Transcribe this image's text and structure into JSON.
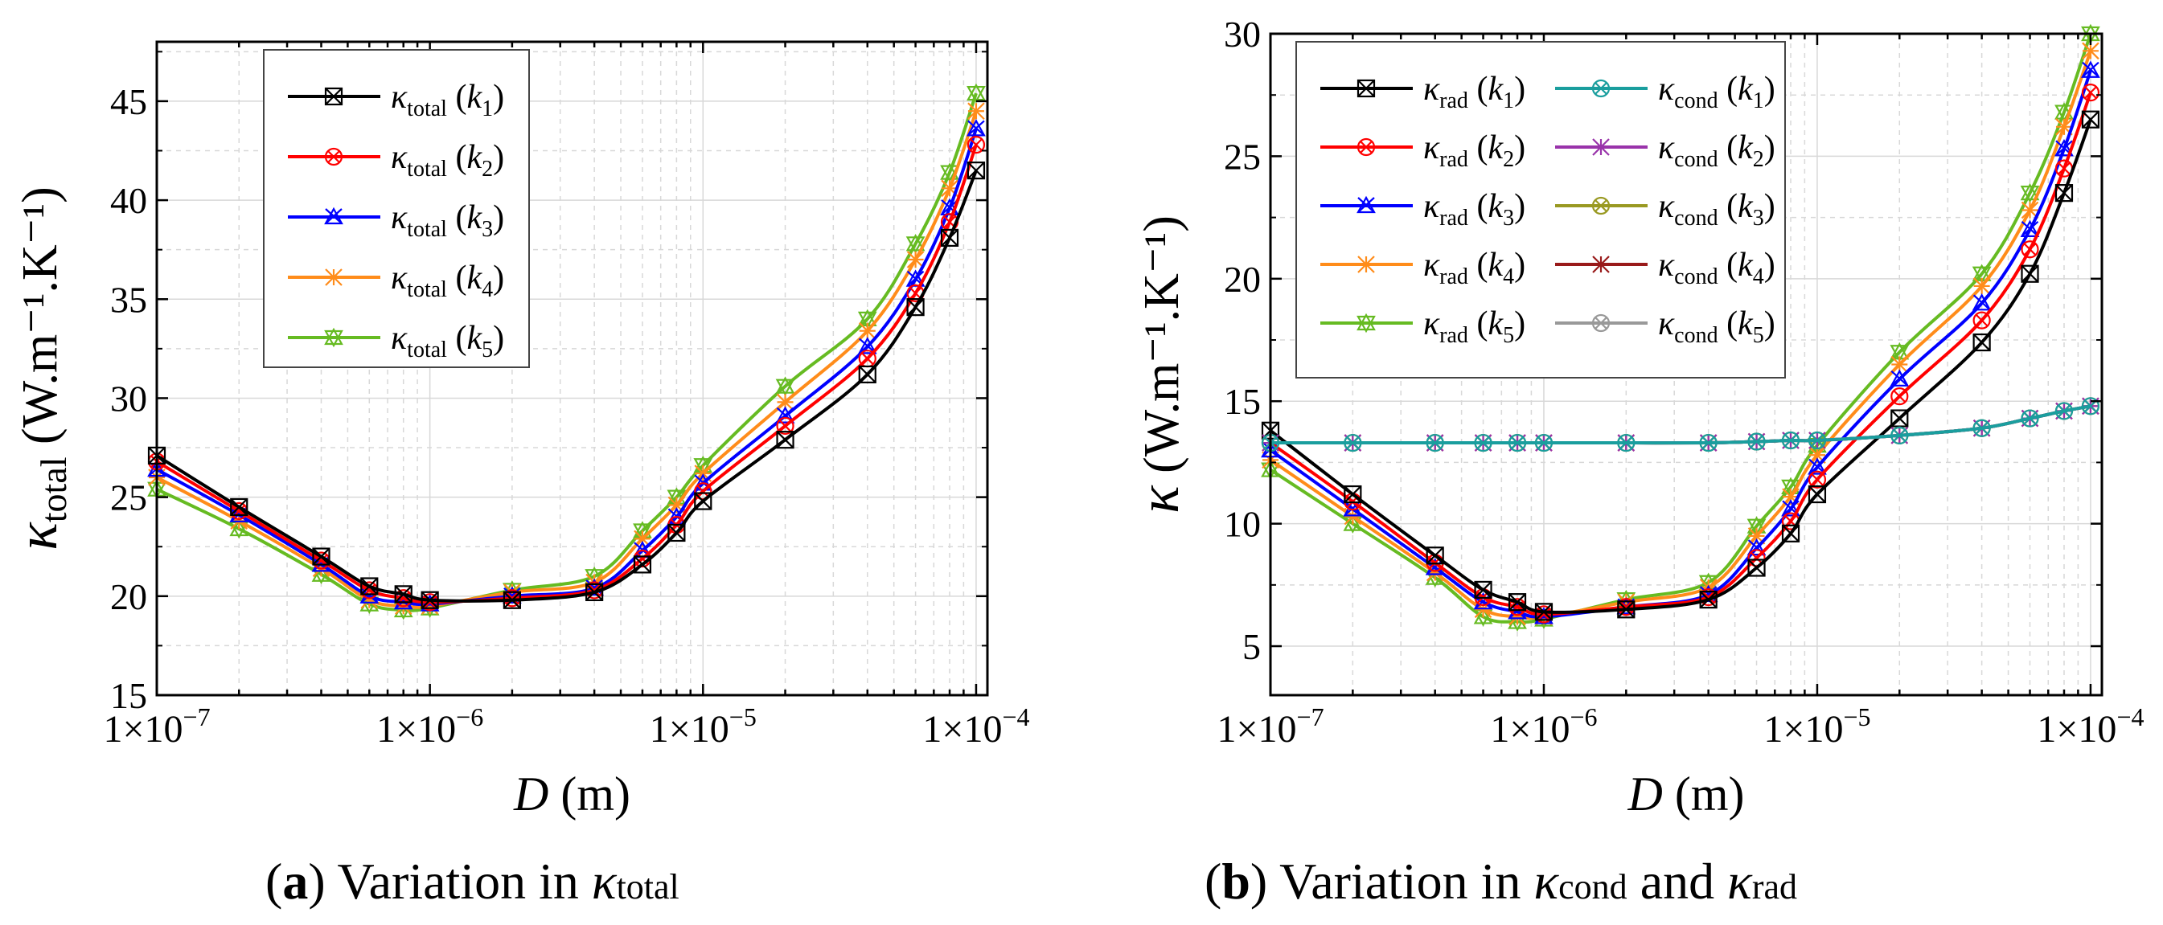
{
  "captions": {
    "a": {
      "label": "a",
      "text": "Variation in",
      "symbol": "κ",
      "sub": "total"
    },
    "b": {
      "label": "b",
      "text": "Variation in",
      "symbol1": "κ",
      "sub1": "cond",
      "and": "and",
      "symbol2": "κ",
      "sub2": "rad"
    }
  },
  "chart_data": [
    {
      "id": "a",
      "type": "line",
      "xscale": "log",
      "xlim": [
        1e-07,
        0.00011
      ],
      "ylim": [
        15,
        48
      ],
      "xticks": [
        "1×10^-7",
        "1×10^-6",
        "1×10^-5",
        "1×10^-4"
      ],
      "yticks": [
        15,
        20,
        25,
        30,
        35,
        40,
        45
      ],
      "xlabel": {
        "var": "D",
        "unit": "(m)"
      },
      "ylabel": {
        "symbol": "κ",
        "sub": "total",
        "unit": "(W.m⁻¹.K⁻¹)"
      },
      "x": [
        1e-07,
        2e-07,
        4e-07,
        6e-07,
        8e-07,
        1e-06,
        2e-06,
        4e-06,
        6e-06,
        8e-06,
        1e-05,
        2e-05,
        4e-05,
        6e-05,
        8e-05,
        0.0001
      ],
      "series": [
        {
          "name": "κtotal (k1)",
          "label": {
            "sym": "κ",
            "sub": "total",
            "k": "1"
          },
          "color": "#000000",
          "marker": "square-x",
          "values": [
            27.1,
            24.5,
            22.0,
            20.5,
            20.1,
            19.8,
            19.8,
            20.2,
            21.6,
            23.2,
            24.8,
            27.9,
            31.2,
            34.6,
            38.1,
            41.5
          ]
        },
        {
          "name": "κtotal (k2)",
          "label": {
            "sym": "κ",
            "sub": "total",
            "k": "2"
          },
          "color": "#ff0000",
          "marker": "circle-x",
          "values": [
            26.8,
            24.3,
            21.8,
            20.3,
            19.9,
            19.7,
            19.9,
            20.3,
            21.9,
            23.6,
            25.3,
            28.6,
            32.0,
            35.3,
            38.9,
            42.8
          ]
        },
        {
          "name": "κtotal (k3)",
          "label": {
            "sym": "κ",
            "sub": "total",
            "k": "3"
          },
          "color": "#0000ff",
          "marker": "triangle-x",
          "values": [
            26.4,
            24.1,
            21.6,
            20.0,
            19.7,
            19.6,
            20.0,
            20.4,
            22.3,
            24.0,
            25.7,
            29.1,
            32.6,
            36.0,
            39.6,
            43.6
          ]
        },
        {
          "name": "κtotal (k4)",
          "label": {
            "sym": "κ",
            "sub": "total",
            "k": "4"
          },
          "color": "#ff8c1a",
          "marker": "star",
          "values": [
            26.0,
            23.8,
            21.4,
            19.8,
            19.5,
            19.5,
            20.2,
            20.7,
            22.9,
            24.6,
            26.2,
            29.8,
            33.4,
            37.0,
            40.6,
            44.5
          ]
        },
        {
          "name": "κtotal (k5)",
          "label": {
            "sym": "κ",
            "sub": "total",
            "k": "5"
          },
          "color": "#66bb22",
          "marker": "double-triangle",
          "values": [
            25.4,
            23.4,
            21.1,
            19.6,
            19.3,
            19.4,
            20.3,
            21.0,
            23.3,
            25.0,
            26.6,
            30.6,
            34.0,
            37.8,
            41.4,
            45.4
          ]
        }
      ]
    },
    {
      "id": "b",
      "type": "line",
      "xscale": "log",
      "xlim": [
        1e-07,
        0.00011
      ],
      "ylim": [
        3,
        30
      ],
      "xticks": [
        "1×10^-7",
        "1×10^-6",
        "1×10^-5",
        "1×10^-4"
      ],
      "yticks": [
        5,
        10,
        15,
        20,
        25,
        30
      ],
      "xlabel": {
        "var": "D",
        "unit": "(m)"
      },
      "ylabel": {
        "symbol": "κ",
        "unit": "(W.m⁻¹.K⁻¹)"
      },
      "x": [
        1e-07,
        2e-07,
        4e-07,
        6e-07,
        8e-07,
        1e-06,
        2e-06,
        4e-06,
        6e-06,
        8e-06,
        1e-05,
        2e-05,
        4e-05,
        6e-05,
        8e-05,
        0.0001
      ],
      "series": [
        {
          "name": "κrad (k1)",
          "label": {
            "sym": "κ",
            "sub": "rad",
            "k": "1"
          },
          "color": "#000000",
          "marker": "square-x",
          "values": [
            13.8,
            11.2,
            8.7,
            7.3,
            6.8,
            6.4,
            6.5,
            6.9,
            8.2,
            9.6,
            11.2,
            14.3,
            17.4,
            20.2,
            23.5,
            26.5
          ]
        },
        {
          "name": "κrad (k2)",
          "label": {
            "sym": "κ",
            "sub": "rad",
            "k": "2"
          },
          "color": "#ff0000",
          "marker": "circle-x",
          "values": [
            13.3,
            10.9,
            8.4,
            7.0,
            6.6,
            6.3,
            6.6,
            7.0,
            8.6,
            10.1,
            11.8,
            15.2,
            18.3,
            21.2,
            24.5,
            27.6
          ]
        },
        {
          "name": "κrad (k3)",
          "label": {
            "sym": "κ",
            "sub": "rad",
            "k": "3"
          },
          "color": "#0000ff",
          "marker": "triangle-x",
          "values": [
            13.0,
            10.6,
            8.2,
            6.8,
            6.4,
            6.2,
            6.6,
            7.1,
            9.0,
            10.6,
            12.3,
            15.9,
            19.0,
            22.0,
            25.3,
            28.5
          ]
        },
        {
          "name": "κrad (k4)",
          "label": {
            "sym": "κ",
            "sub": "rad",
            "k": "4"
          },
          "color": "#ff8c1a",
          "marker": "star",
          "values": [
            12.6,
            10.3,
            8.0,
            6.5,
            6.2,
            6.2,
            6.8,
            7.4,
            9.5,
            11.1,
            12.8,
            16.5,
            19.7,
            22.8,
            26.2,
            29.3
          ]
        },
        {
          "name": "κrad (k5)",
          "label": {
            "sym": "κ",
            "sub": "rad",
            "k": "5"
          },
          "color": "#66bb22",
          "marker": "double-triangle",
          "values": [
            12.2,
            10.0,
            7.8,
            6.2,
            6.0,
            6.1,
            6.9,
            7.6,
            9.9,
            11.5,
            13.2,
            17.0,
            20.2,
            23.5,
            26.8,
            30.0
          ]
        },
        {
          "name": "κcond (k1)",
          "label": {
            "sym": "κ",
            "sub": "cond",
            "k": "1"
          },
          "color": "#1a9e9e",
          "marker": "circle-x",
          "values": [
            13.3,
            13.3,
            13.3,
            13.3,
            13.3,
            13.3,
            13.3,
            13.3,
            13.35,
            13.4,
            13.4,
            13.6,
            13.9,
            14.3,
            14.6,
            14.8
          ]
        },
        {
          "name": "κcond (k2)",
          "label": {
            "sym": "κ",
            "sub": "cond",
            "k": "2"
          },
          "color": "#9933aa",
          "marker": "star",
          "values": [
            13.3,
            13.3,
            13.3,
            13.3,
            13.3,
            13.3,
            13.3,
            13.3,
            13.35,
            13.4,
            13.4,
            13.6,
            13.9,
            14.3,
            14.6,
            14.8
          ]
        },
        {
          "name": "κcond (k3)",
          "label": {
            "sym": "κ",
            "sub": "cond",
            "k": "3"
          },
          "color": "#999922",
          "marker": "circle-x",
          "values": [
            13.3,
            13.3,
            13.3,
            13.3,
            13.3,
            13.3,
            13.3,
            13.3,
            13.35,
            13.4,
            13.4,
            13.6,
            13.9,
            14.3,
            14.6,
            14.8
          ]
        },
        {
          "name": "κcond (k4)",
          "label": {
            "sym": "κ",
            "sub": "cond",
            "k": "4"
          },
          "color": "#991a1a",
          "marker": "star",
          "values": [
            13.3,
            13.3,
            13.3,
            13.3,
            13.3,
            13.3,
            13.3,
            13.3,
            13.35,
            13.4,
            13.4,
            13.6,
            13.9,
            14.3,
            14.6,
            14.8
          ]
        },
        {
          "name": "κcond (k5)",
          "label": {
            "sym": "κ",
            "sub": "cond",
            "k": "5"
          },
          "color": "#999999",
          "marker": "circle-x",
          "values": [
            13.3,
            13.3,
            13.3,
            13.3,
            13.3,
            13.3,
            13.3,
            13.3,
            13.35,
            13.4,
            13.4,
            13.6,
            13.9,
            14.3,
            14.6,
            14.8
          ]
        }
      ]
    }
  ]
}
